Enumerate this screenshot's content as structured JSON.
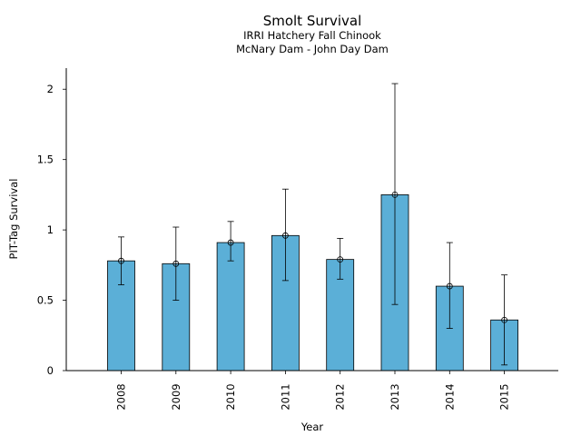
{
  "chart_data": {
    "type": "bar",
    "title": "Smolt Survival",
    "subtitle_lines": [
      "IRRI Hatchery Fall Chinook",
      "McNary Dam - John Day Dam"
    ],
    "xlabel": "Year",
    "ylabel": "PIT-Tag Survival",
    "categories": [
      "2008",
      "2009",
      "2010",
      "2011",
      "2012",
      "2013",
      "2014",
      "2015"
    ],
    "values": [
      0.78,
      0.76,
      0.91,
      0.96,
      0.79,
      1.25,
      0.6,
      0.36
    ],
    "error_low": [
      0.61,
      0.5,
      0.78,
      0.64,
      0.65,
      0.47,
      0.3,
      0.04
    ],
    "error_high": [
      0.95,
      1.02,
      1.06,
      1.29,
      0.94,
      2.04,
      0.91,
      0.68
    ],
    "ylim": [
      0,
      2.15
    ],
    "yticks": [
      0,
      0.5,
      1,
      1.5,
      2
    ],
    "ytick_labels": [
      "0",
      "0.5",
      "1",
      "1.5",
      "2"
    ],
    "bar_color": "#5bafd7",
    "edge_color": "#000000",
    "grid": false,
    "legend": "none"
  }
}
